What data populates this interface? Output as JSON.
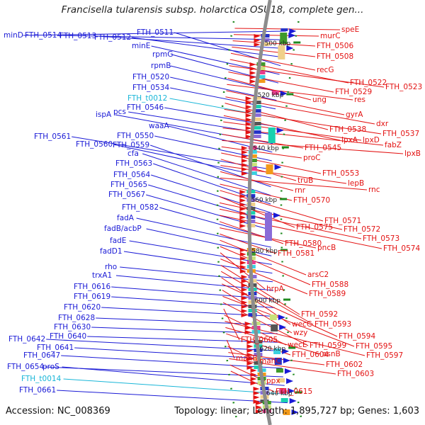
{
  "title": "Francisella tularensis subsp. holarctica OSU18, complete gen...",
  "footer": {
    "accession": "Accession: NC_008369",
    "topology": "Topology: linear; Length: 1,895,727 bp; Genes: 1,603"
  },
  "colors": {
    "left_label": "#1a1ad6",
    "trna_label": "#19b6d8",
    "right_label": "#e31212",
    "kbp_tick": "#1e8a1e",
    "backbone": "#8c8c8c"
  },
  "scale_labels": [
    "500 kbp",
    "520 kbp",
    "540 kbp",
    "560 kbp",
    "580 kbp",
    "600 kbp",
    "620 kbp",
    "640 kbp"
  ],
  "left_labels": [
    {
      "text": "minD",
      "kind": "gene"
    },
    {
      "text": "FTH_0514",
      "kind": "gene"
    },
    {
      "text": "FTH_0513",
      "kind": "gene"
    },
    {
      "text": "FTH_0512",
      "kind": "gene"
    },
    {
      "text": "FTH_0511",
      "kind": "gene"
    },
    {
      "text": "minE",
      "kind": "gene"
    },
    {
      "text": "rpmG",
      "kind": "gene"
    },
    {
      "text": "rpmB",
      "kind": "gene"
    },
    {
      "text": "FTH_0520",
      "kind": "gene"
    },
    {
      "text": "FTH_0534",
      "kind": "gene"
    },
    {
      "text": "FTH_t0012",
      "kind": "trna"
    },
    {
      "text": "FTH_0546",
      "kind": "gene"
    },
    {
      "text": "pcs",
      "kind": "gene"
    },
    {
      "text": "ispA",
      "kind": "gene"
    },
    {
      "text": "waaA",
      "kind": "gene"
    },
    {
      "text": "FTH_0550",
      "kind": "gene"
    },
    {
      "text": "FTH_0561",
      "kind": "gene"
    },
    {
      "text": "FTH_0560",
      "kind": "gene"
    },
    {
      "text": "FTH_0559",
      "kind": "gene"
    },
    {
      "text": "cfa",
      "kind": "gene"
    },
    {
      "text": "FTH_0563",
      "kind": "gene"
    },
    {
      "text": "FTH_0564",
      "kind": "gene"
    },
    {
      "text": "FTH_0565",
      "kind": "gene"
    },
    {
      "text": "FTH_0567",
      "kind": "gene"
    },
    {
      "text": "FTH_0582",
      "kind": "gene"
    },
    {
      "text": "fadA",
      "kind": "gene"
    },
    {
      "text": "fadB/acbP",
      "kind": "gene"
    },
    {
      "text": "fadE",
      "kind": "gene"
    },
    {
      "text": "fadD1",
      "kind": "gene"
    },
    {
      "text": "rho",
      "kind": "gene"
    },
    {
      "text": "trxA1",
      "kind": "gene"
    },
    {
      "text": "FTH_0616",
      "kind": "gene"
    },
    {
      "text": "FTH_0619",
      "kind": "gene"
    },
    {
      "text": "FTH_0620",
      "kind": "gene"
    },
    {
      "text": "FTH_0628",
      "kind": "gene"
    },
    {
      "text": "FTH_0630",
      "kind": "gene"
    },
    {
      "text": "FTH_0640",
      "kind": "gene"
    },
    {
      "text": "FTH_0642",
      "kind": "gene"
    },
    {
      "text": "FTH_0641",
      "kind": "gene"
    },
    {
      "text": "FTH_0647",
      "kind": "gene"
    },
    {
      "text": "FTH_0654",
      "kind": "gene"
    },
    {
      "text": "proS",
      "kind": "gene"
    },
    {
      "text": "FTH_t0014",
      "kind": "trna"
    },
    {
      "text": "FTH_0661",
      "kind": "gene"
    }
  ],
  "right_labels": [
    "speE",
    "murC",
    "FTH_0506",
    "FTH_0508",
    "recG",
    "FTH_0522",
    "FTH_0523",
    "FTH_0529",
    "ung",
    "res",
    "gyrA",
    "dxr",
    "FTH_0538",
    "FTH_0537",
    "lpxA",
    "lpxD",
    "fabZ",
    "FTH_0545",
    "lpxB",
    "proC",
    "FTH_0553",
    "truB",
    "lepB",
    "rnr",
    "rnc",
    "FTH_0570",
    "FTH_0571",
    "FTH_0575",
    "FTH_0572",
    "FTH_0573",
    "FTH_0574",
    "FTH_0580",
    "pncB",
    "FTH_0581",
    "arsC2",
    "FTH_0588",
    "hrpA",
    "FTH_0589",
    "FTH_0592",
    "FTH_0593",
    "wecC",
    "FTH_0594",
    "wzy",
    "FTH_0595",
    "FTH_0599",
    "FTH_0605",
    "wecE",
    "FTH_0597",
    "asnB",
    "FTH_0604",
    "manB",
    "manC",
    "FTH_0602",
    "FTH_0603",
    "ppx",
    "FTH_0615"
  ]
}
